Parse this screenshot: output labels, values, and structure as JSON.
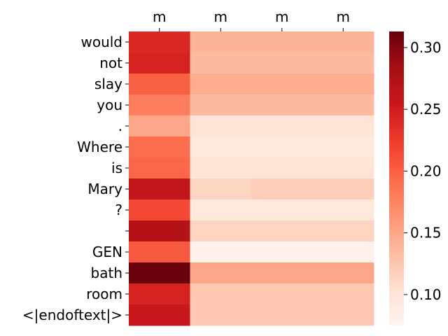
{
  "chart_data": {
    "type": "heatmap",
    "title": "",
    "xlabel": "",
    "ylabel": "",
    "x_labels": [
      "m",
      "m",
      "m",
      "m"
    ],
    "y_labels": [
      "would",
      "not",
      "slay",
      "you",
      ".",
      "Where",
      "is",
      "Mary",
      "?",
      "",
      "GEN",
      "bath",
      "room",
      "<|endoftext|>"
    ],
    "values": [
      [
        0.24,
        0.14,
        0.14,
        0.14
      ],
      [
        0.245,
        0.135,
        0.135,
        0.135
      ],
      [
        0.2,
        0.145,
        0.145,
        0.145
      ],
      [
        0.18,
        0.135,
        0.135,
        0.135
      ],
      [
        0.15,
        0.1,
        0.1,
        0.1
      ],
      [
        0.19,
        0.095,
        0.095,
        0.095
      ],
      [
        0.195,
        0.1,
        0.1,
        0.1
      ],
      [
        0.26,
        0.115,
        0.12,
        0.12
      ],
      [
        0.215,
        0.095,
        0.095,
        0.095
      ],
      [
        0.27,
        0.115,
        0.115,
        0.115
      ],
      [
        0.205,
        0.08,
        0.08,
        0.08
      ],
      [
        0.312,
        0.15,
        0.15,
        0.15
      ],
      [
        0.245,
        0.125,
        0.125,
        0.125
      ],
      [
        0.255,
        0.125,
        0.125,
        0.125
      ]
    ],
    "colorbar": {
      "colormap": "Reds",
      "vmin": 0.075,
      "vmax": 0.313,
      "ticks": [
        0.1,
        0.15,
        0.2,
        0.25,
        0.3
      ],
      "tick_labels": [
        "0.10",
        "0.15",
        "0.20",
        "0.25",
        "0.30"
      ]
    },
    "grid": false,
    "legend": "colorbar-right"
  }
}
